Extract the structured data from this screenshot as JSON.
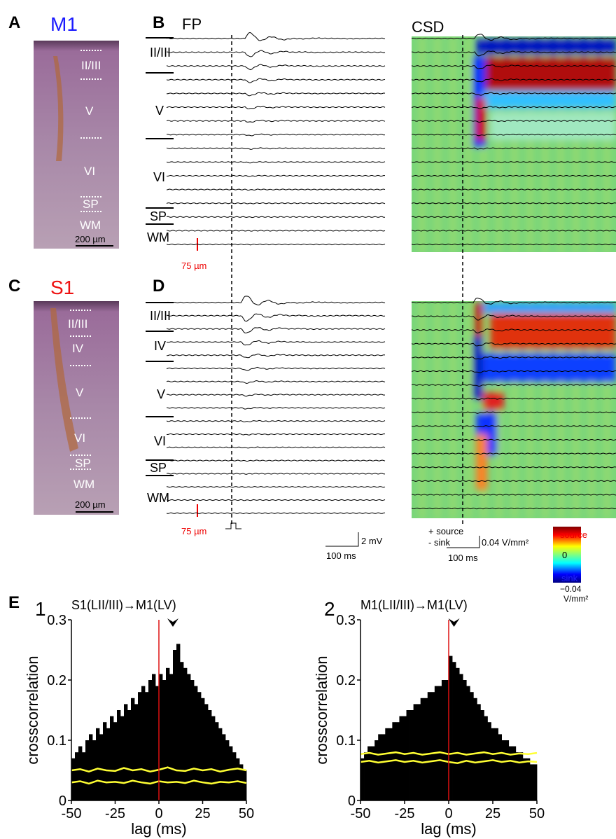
{
  "panels": {
    "A": {
      "letter": "A",
      "region": "M1",
      "layers": [
        "II/III",
        "V",
        "VI",
        "SP",
        "WM"
      ],
      "scale": "200 µm"
    },
    "B": {
      "letter": "B",
      "fp_label": "FP",
      "csd_label": "CSD",
      "layers": [
        "II/III",
        "V",
        "VI",
        "SP",
        "WM"
      ],
      "depth_scale": "75 µm"
    },
    "C": {
      "letter": "C",
      "region": "S1",
      "layers": [
        "II/III",
        "IV",
        "V",
        "VI",
        "SP",
        "WM"
      ],
      "scale": "200 µm"
    },
    "D": {
      "letter": "D",
      "layers": [
        "II/III",
        "IV",
        "V",
        "VI",
        "SP",
        "WM"
      ],
      "depth_scale": "75 µm"
    },
    "scale_bars": {
      "fp_amp": "2 mV",
      "fp_time": "100 ms",
      "csd_source": "+ source",
      "csd_sink": "- sink",
      "csd_amp": "0.04 V/mm²",
      "csd_time": "100 ms"
    },
    "colorbar": {
      "top": "source",
      "mid": "0",
      "bottom": "sink",
      "min": "−0.04",
      "unit": "V/mm²"
    },
    "E": {
      "letter": "E"
    }
  },
  "chart_data": [
    {
      "type": "histogram",
      "panel": "1",
      "title": "S1(LII/III)→M1(LV)",
      "x_label": "lag (ms)",
      "y_label": "crosscorrelation",
      "color": "#000000",
      "bins": [
        -50,
        -48,
        -46,
        -44,
        -42,
        -40,
        -38,
        -36,
        -34,
        -32,
        -30,
        -28,
        -26,
        -24,
        -22,
        -20,
        -18,
        -16,
        -14,
        -12,
        -10,
        -8,
        -6,
        -4,
        -2,
        0,
        2,
        4,
        6,
        8,
        10,
        12,
        14,
        16,
        18,
        20,
        22,
        24,
        26,
        28,
        30,
        32,
        34,
        36,
        38,
        40,
        42,
        44,
        46,
        48,
        50
      ],
      "values": [
        0.07,
        0.08,
        0.09,
        0.08,
        0.1,
        0.11,
        0.1,
        0.12,
        0.11,
        0.13,
        0.12,
        0.14,
        0.13,
        0.15,
        0.14,
        0.16,
        0.15,
        0.17,
        0.16,
        0.18,
        0.19,
        0.18,
        0.2,
        0.21,
        0.19,
        0.21,
        0.2,
        0.22,
        0.21,
        0.25,
        0.26,
        0.23,
        0.22,
        0.21,
        0.2,
        0.19,
        0.18,
        0.17,
        0.16,
        0.15,
        0.14,
        0.13,
        0.12,
        0.11,
        0.1,
        0.09,
        0.08,
        0.07,
        0.06,
        0.05
      ],
      "bounds_x": [
        -50,
        -45,
        -40,
        -35,
        -30,
        -25,
        -20,
        -15,
        -10,
        -5,
        0,
        5,
        10,
        15,
        20,
        25,
        30,
        35,
        40,
        45,
        50
      ],
      "bounds": [
        {
          "color": "#ffff33",
          "values": [
            0.05,
            0.052,
            0.048,
            0.053,
            0.05,
            0.049,
            0.054,
            0.05,
            0.052,
            0.048,
            0.051,
            0.055,
            0.05,
            0.049,
            0.053,
            0.05,
            0.052,
            0.048,
            0.051,
            0.053,
            0.05
          ]
        },
        {
          "color": "#ffff33",
          "values": [
            0.03,
            0.032,
            0.028,
            0.033,
            0.03,
            0.031,
            0.029,
            0.033,
            0.03,
            0.028,
            0.032,
            0.03,
            0.031,
            0.029,
            0.033,
            0.03,
            0.028,
            0.031,
            0.03,
            0.032,
            0.029
          ]
        }
      ],
      "vline": 0,
      "vline_color": "#dd1111",
      "arrow_x": 8,
      "xlim": [
        -50,
        50
      ],
      "ylim": [
        0,
        0.3
      ],
      "xticks": [
        -50,
        -25,
        0,
        25,
        50
      ],
      "yticks": [
        0,
        0.1,
        0.2,
        0.3
      ]
    },
    {
      "type": "histogram",
      "panel": "2",
      "title": "M1(LII/III)→M1(LV)",
      "x_label": "lag (ms)",
      "y_label": "crosscorrelation",
      "color": "#000000",
      "bins": [
        -50,
        -48,
        -46,
        -44,
        -42,
        -40,
        -38,
        -36,
        -34,
        -32,
        -30,
        -28,
        -26,
        -24,
        -22,
        -20,
        -18,
        -16,
        -14,
        -12,
        -10,
        -8,
        -6,
        -4,
        -2,
        0,
        2,
        4,
        6,
        8,
        10,
        12,
        14,
        16,
        18,
        20,
        22,
        24,
        26,
        28,
        30,
        32,
        34,
        36,
        38,
        40,
        42,
        44,
        46,
        48,
        50
      ],
      "values": [
        0.07,
        0.08,
        0.09,
        0.09,
        0.1,
        0.11,
        0.11,
        0.12,
        0.12,
        0.13,
        0.13,
        0.14,
        0.14,
        0.15,
        0.15,
        0.16,
        0.16,
        0.17,
        0.17,
        0.18,
        0.18,
        0.19,
        0.19,
        0.2,
        0.2,
        0.24,
        0.23,
        0.22,
        0.21,
        0.2,
        0.19,
        0.18,
        0.17,
        0.16,
        0.15,
        0.14,
        0.13,
        0.12,
        0.12,
        0.11,
        0.1,
        0.1,
        0.09,
        0.09,
        0.08,
        0.08,
        0.07,
        0.07,
        0.06,
        0.06
      ],
      "bounds_x": [
        -50,
        -45,
        -40,
        -35,
        -30,
        -25,
        -20,
        -15,
        -10,
        -5,
        0,
        5,
        10,
        15,
        20,
        25,
        30,
        35,
        40,
        45,
        50
      ],
      "bounds": [
        {
          "color": "#ffff33",
          "values": [
            0.077,
            0.079,
            0.076,
            0.078,
            0.08,
            0.077,
            0.079,
            0.076,
            0.078,
            0.08,
            0.077,
            0.079,
            0.076,
            0.078,
            0.08,
            0.077,
            0.079,
            0.076,
            0.078,
            0.077,
            0.079
          ]
        },
        {
          "color": "#ffff33",
          "values": [
            0.064,
            0.066,
            0.063,
            0.065,
            0.067,
            0.064,
            0.066,
            0.063,
            0.065,
            0.067,
            0.064,
            0.062,
            0.066,
            0.063,
            0.065,
            0.067,
            0.064,
            0.066,
            0.063,
            0.065,
            0.064
          ]
        }
      ],
      "vline": 0,
      "vline_color": "#dd1111",
      "arrow_x": 3,
      "xlim": [
        -50,
        50
      ],
      "ylim": [
        0,
        0.3
      ],
      "xticks": [
        -50,
        -25,
        0,
        25,
        50
      ],
      "yticks": [
        0,
        0.1,
        0.2,
        0.3
      ]
    }
  ]
}
